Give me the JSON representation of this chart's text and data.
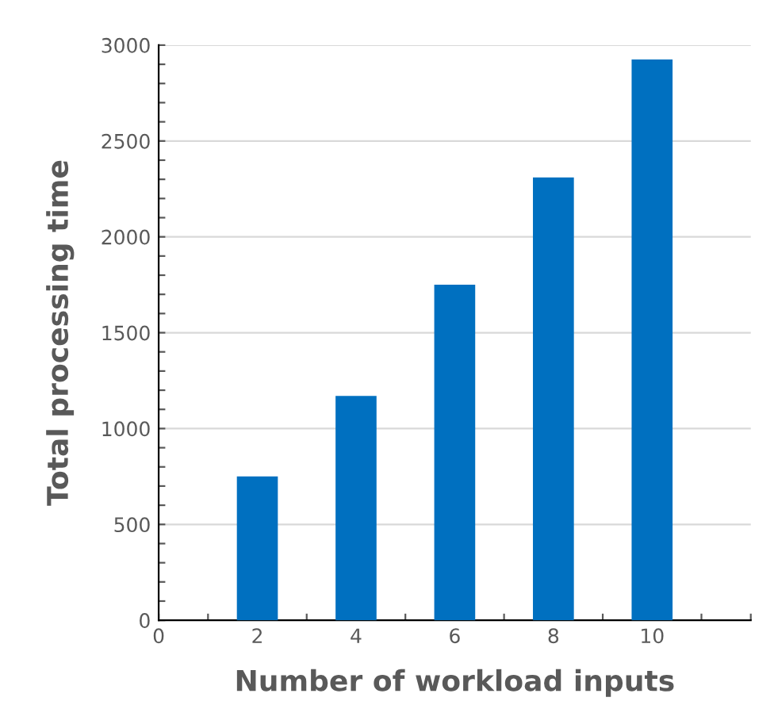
{
  "chart_data": {
    "type": "bar",
    "xlabel": "Number of workload inputs",
    "ylabel": "Total processing time",
    "x": [
      2,
      4,
      6,
      8,
      10
    ],
    "values": [
      750,
      1170,
      1750,
      2310,
      2925
    ],
    "color": "#0070c0",
    "xlim": [
      0,
      12
    ],
    "xticks": [
      0,
      {
        "value": 1,
        "label": null
      },
      2,
      {
        "value": 3,
        "label": null
      },
      4,
      {
        "value": 5,
        "label": null
      },
      6,
      {
        "value": 7,
        "label": null
      },
      8,
      {
        "value": 9,
        "label": null
      },
      10,
      {
        "value": 11,
        "label": null
      },
      {
        "value": 12,
        "label": null
      }
    ],
    "ylim": [
      0,
      3000
    ],
    "yticks": [
      0,
      {
        "value": 100,
        "label": null
      },
      {
        "value": 200,
        "label": null
      },
      {
        "value": 300,
        "label": null
      },
      {
        "value": 400,
        "label": null
      },
      500,
      {
        "value": 600,
        "label": null
      },
      {
        "value": 700,
        "label": null
      },
      {
        "value": 800,
        "label": null
      },
      {
        "value": 900,
        "label": null
      },
      1000,
      {
        "value": 1100,
        "label": null
      },
      {
        "value": 1200,
        "label": null
      },
      {
        "value": 1300,
        "label": null
      },
      {
        "value": 1400,
        "label": null
      },
      1500,
      {
        "value": 1600,
        "label": null
      },
      {
        "value": 1700,
        "label": null
      },
      {
        "value": 1800,
        "label": null
      },
      {
        "value": 1900,
        "label": null
      },
      2000,
      {
        "value": 2100,
        "label": null
      },
      {
        "value": 2200,
        "label": null
      },
      {
        "value": 2300,
        "label": null
      },
      {
        "value": 2400,
        "label": null
      },
      2500,
      {
        "value": 2600,
        "label": null
      },
      {
        "value": 2700,
        "label": null
      },
      {
        "value": 2800,
        "label": null
      },
      {
        "value": 2900,
        "label": null
      },
      3000
    ],
    "grid": "y"
  }
}
